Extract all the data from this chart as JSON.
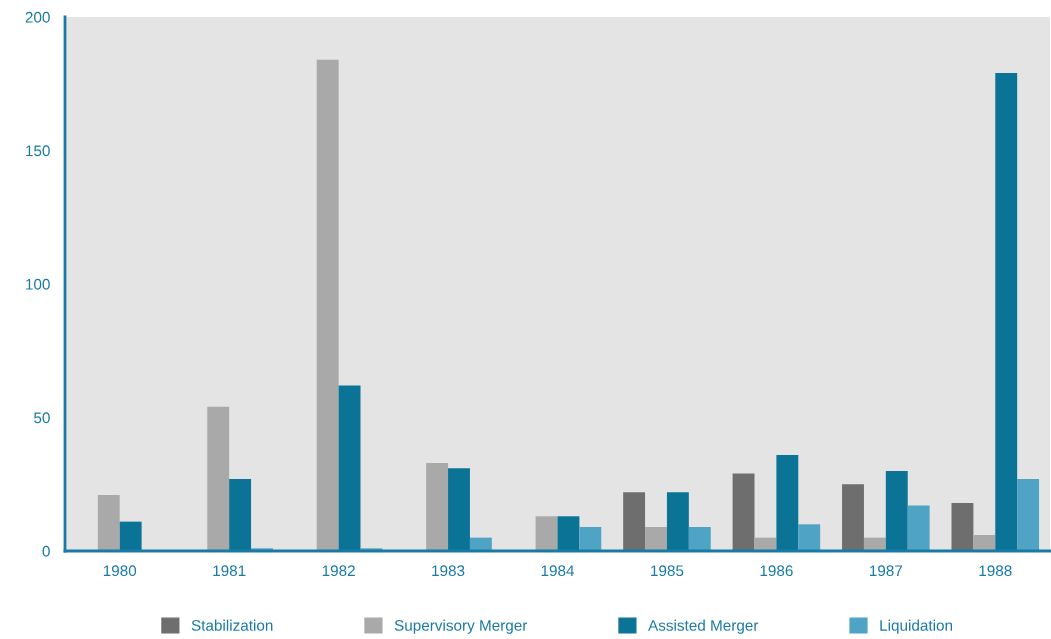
{
  "chart_data": {
    "type": "bar",
    "categories": [
      "1980",
      "1981",
      "1982",
      "1983",
      "1984",
      "1985",
      "1986",
      "1987",
      "1988"
    ],
    "series": [
      {
        "name": "Stabilization",
        "color": "#6e6e6e",
        "values": [
          0,
          0,
          0,
          0,
          0,
          22,
          29,
          25,
          18
        ]
      },
      {
        "name": "Supervisory Merger",
        "color": "#a9a9a9",
        "values": [
          21,
          54,
          184,
          33,
          13,
          9,
          5,
          5,
          6
        ]
      },
      {
        "name": "Assisted Merger",
        "color": "#0b7395",
        "values": [
          11,
          27,
          62,
          31,
          13,
          22,
          36,
          30,
          179
        ]
      },
      {
        "name": "Liquidation",
        "color": "#4fa3c4",
        "values": [
          0,
          1,
          1,
          5,
          9,
          9,
          10,
          17,
          27
        ]
      }
    ],
    "ylim": [
      0,
      200
    ],
    "yticks": [
      0,
      50,
      100,
      150,
      200
    ],
    "grid": false,
    "legend": "bottom"
  }
}
